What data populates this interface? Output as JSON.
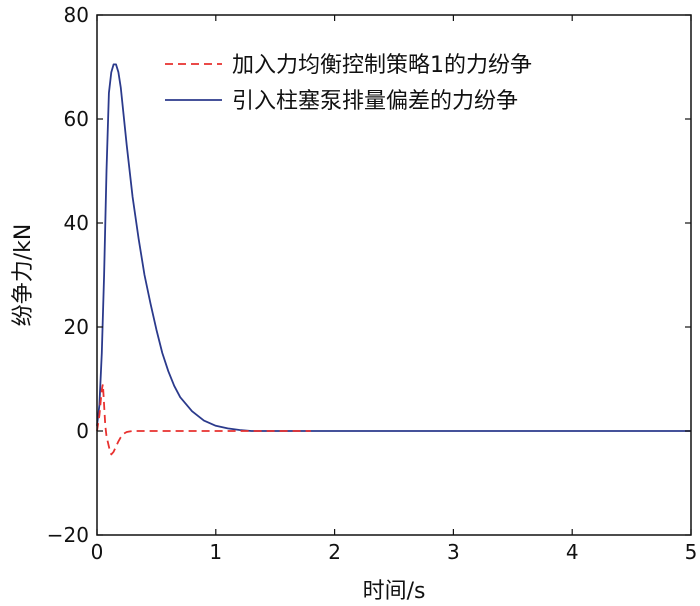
{
  "chart_data": {
    "type": "line",
    "title": "",
    "xlabel": "时间/s",
    "ylabel": "纷争力/kN",
    "xlim": [
      0,
      5
    ],
    "ylim": [
      -20,
      80
    ],
    "xticks": [
      0,
      1,
      2,
      3,
      4,
      5
    ],
    "yticks": [
      -20,
      0,
      20,
      40,
      60,
      80
    ],
    "grid": false,
    "legend_position": "top-right",
    "series": [
      {
        "name": "加入力均衡控制策略1的力纷争",
        "color": "#e8312f",
        "line_style": "dashed",
        "x": [
          0,
          0.02,
          0.04,
          0.05,
          0.06,
          0.07,
          0.08,
          0.09,
          0.1,
          0.11,
          0.12,
          0.14,
          0.16,
          0.18,
          0.2,
          0.22,
          0.25,
          0.3,
          0.4,
          0.6,
          1.0,
          1.5,
          1.8
        ],
        "y": [
          0,
          3,
          8,
          9,
          5,
          1,
          -1,
          -2,
          -3,
          -4,
          -4.5,
          -4,
          -3,
          -2,
          -1.2,
          -0.6,
          -0.2,
          0,
          0,
          0,
          0,
          0,
          0
        ]
      },
      {
        "name": "引入柱塞泵排量偏差的力纷争",
        "color": "#2b3a8c",
        "line_style": "solid",
        "x": [
          0,
          0.02,
          0.04,
          0.06,
          0.08,
          0.1,
          0.12,
          0.14,
          0.16,
          0.18,
          0.2,
          0.25,
          0.3,
          0.35,
          0.4,
          0.45,
          0.5,
          0.55,
          0.6,
          0.65,
          0.7,
          0.8,
          0.9,
          1.0,
          1.1,
          1.2,
          1.3,
          1.5,
          2.0,
          3.0,
          4.0,
          5.0
        ],
        "y": [
          1,
          5,
          15,
          30,
          50,
          65,
          69,
          70.5,
          70.5,
          69,
          66,
          55,
          45,
          37,
          30,
          24.5,
          19.5,
          15,
          11.5,
          8.7,
          6.5,
          3.8,
          2,
          1,
          0.5,
          0.2,
          0,
          0,
          0,
          0,
          0,
          0
        ]
      }
    ]
  }
}
